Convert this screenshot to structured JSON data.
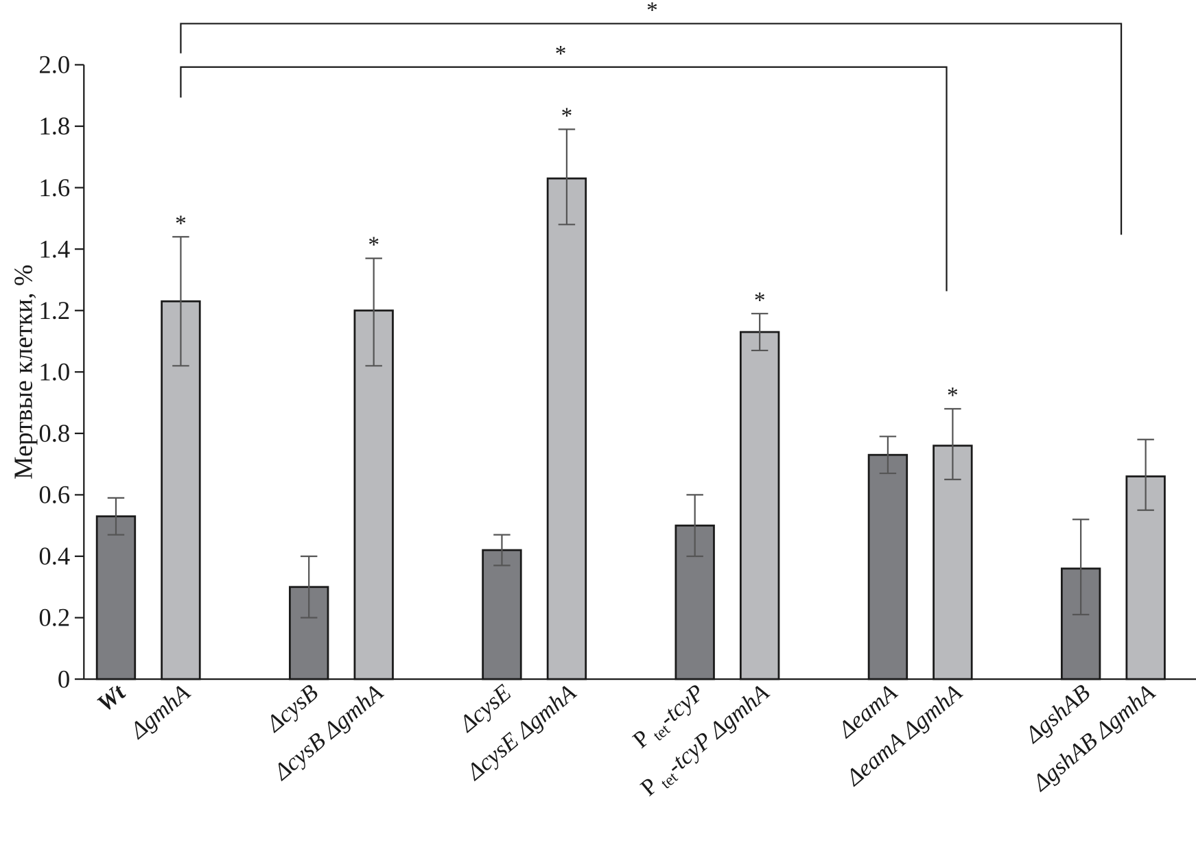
{
  "chart_data": {
    "type": "bar",
    "title": "",
    "xlabel": "",
    "ylabel": "Мертвые клетки, %",
    "ylim": [
      0,
      2.0
    ],
    "yticks": [
      "0",
      "0.2",
      "0.4",
      "0.6",
      "0.8",
      "1.0",
      "1.2",
      "1.4",
      "1.6",
      "1.8",
      "2.0"
    ],
    "grid": false,
    "legend": "none",
    "categories": [
      "Wt",
      "ΔgmhA",
      "ΔcysB",
      "ΔcysB ΔgmhA",
      "ΔcysE",
      "ΔcysE ΔgmhA",
      "Ptet-tcyP",
      "Ptet-tcyP ΔgmhA",
      "ΔeamA",
      "ΔeamA ΔgmhA",
      "ΔgshAB",
      "ΔgshAB ΔgmhA"
    ],
    "values": [
      0.53,
      1.23,
      0.3,
      1.2,
      0.42,
      1.63,
      0.5,
      1.13,
      0.73,
      0.76,
      0.36,
      0.66
    ],
    "error_low": [
      0.47,
      1.02,
      0.2,
      1.02,
      0.37,
      1.48,
      0.4,
      1.07,
      0.67,
      0.65,
      0.21,
      0.55
    ],
    "error_high": [
      0.59,
      1.44,
      0.4,
      1.37,
      0.47,
      1.79,
      0.6,
      1.19,
      0.79,
      0.88,
      0.52,
      0.78
    ],
    "significant": [
      false,
      true,
      false,
      true,
      false,
      true,
      false,
      true,
      false,
      true,
      false,
      false
    ],
    "significance_marker": "*",
    "brackets": [
      {
        "from": "ΔgmhA",
        "to": "ΔeamA ΔgmhA",
        "label": "*"
      },
      {
        "from": "ΔgmhA",
        "to": "ΔgshAB ΔgmhA",
        "label": "*"
      }
    ],
    "colors": {
      "single_mutant": "#7d7e82",
      "gmhA_mutant": "#b9babd",
      "outline": "#1a1a1a",
      "error_bar": "#555555"
    }
  }
}
